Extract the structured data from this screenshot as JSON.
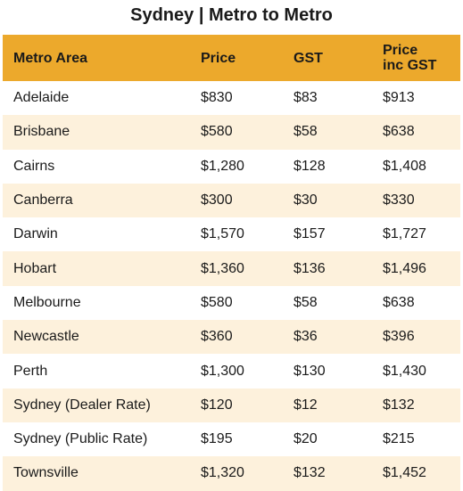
{
  "title": "Sydney | Metro to Metro",
  "colors": {
    "header_bg": "#ECA92C",
    "band_bg": "#FDF1DC"
  },
  "table": {
    "headers": [
      "Metro Area",
      "Price",
      "GST",
      "Price\ninc GST"
    ],
    "rows": [
      [
        "Adelaide",
        "$830",
        "$83",
        "$913"
      ],
      [
        "Brisbane",
        "$580",
        "$58",
        "$638"
      ],
      [
        "Cairns",
        "$1,280",
        "$128",
        "$1,408"
      ],
      [
        "Canberra",
        "$300",
        "$30",
        "$330"
      ],
      [
        "Darwin",
        "$1,570",
        "$157",
        "$1,727"
      ],
      [
        "Hobart",
        "$1,360",
        "$136",
        "$1,496"
      ],
      [
        "Melbourne",
        "$580",
        "$58",
        "$638"
      ],
      [
        "Newcastle",
        "$360",
        "$36",
        "$396"
      ],
      [
        "Perth",
        "$1,300",
        "$130",
        "$1,430"
      ],
      [
        "Sydney (Dealer Rate)",
        "$120",
        "$12",
        "$132"
      ],
      [
        "Sydney (Public Rate)",
        "$195",
        "$20",
        "$215"
      ],
      [
        "Townsville",
        "$1,320",
        "$132",
        "$1,452"
      ]
    ]
  }
}
